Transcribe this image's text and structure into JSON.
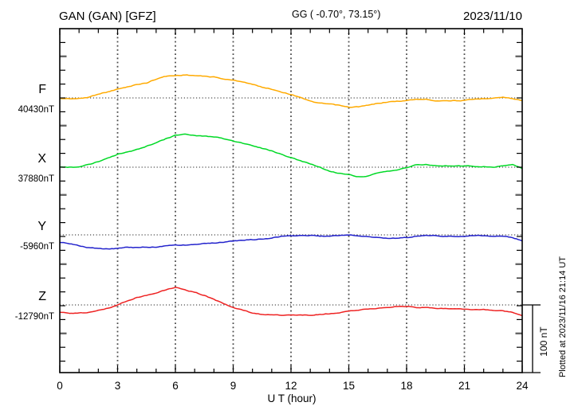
{
  "header": {
    "station_title": "GAN (GAN)  [GFZ]",
    "coords": "GG ( -0.70°,  73.15°)",
    "date": "2023/11/10"
  },
  "axes": {
    "x_label": "U T (hour)",
    "x_range": [
      0,
      24
    ],
    "x_major_ticks": [
      0,
      3,
      6,
      9,
      12,
      15,
      18,
      21,
      24
    ],
    "x_minor_tick_hours": 1,
    "y_minor_tick_nT": 20,
    "y_major_tick_nT": 100,
    "grid": "dotted vertical lines every 3 hours; dotted horizontal baseline per component"
  },
  "scale_bar": {
    "label": "100 nT",
    "value_nT": 100
  },
  "footer_note": "Plotted at 2023/11/16 21:14 UT",
  "chart_data": {
    "type": "line",
    "title": "GAN (GAN) [GFZ] magnetogram 2023/11/10",
    "x_unit": "hour UT",
    "hours": [
      0,
      0.5,
      1,
      1.5,
      2,
      2.5,
      3,
      3.5,
      4,
      4.5,
      5,
      5.5,
      6,
      6.5,
      7,
      7.5,
      8,
      8.5,
      9,
      9.5,
      10,
      10.5,
      11,
      11.5,
      12,
      12.5,
      13,
      13.5,
      14,
      14.5,
      15,
      15.5,
      16,
      16.5,
      17,
      17.5,
      18,
      18.5,
      19,
      19.5,
      20,
      20.5,
      21,
      21.5,
      22,
      22.5,
      23,
      23.5,
      24
    ],
    "series": [
      {
        "name": "F",
        "label": "F",
        "base_label": "40430nT",
        "base_nT": 40430,
        "color": "#ffaa00",
        "offsets_nT": [
          -1,
          -1,
          -1,
          1,
          6,
          9,
          13,
          16,
          20,
          22,
          28,
          32,
          33,
          34,
          33,
          32,
          31,
          28,
          26,
          24,
          20,
          16,
          13,
          9,
          5,
          1,
          -5,
          -8,
          -9,
          -11,
          -14,
          -13,
          -11,
          -8,
          -6,
          -5,
          -4,
          -2,
          -2,
          -4,
          -4,
          -4,
          -4,
          -2,
          -1,
          0,
          1,
          -1,
          -4
        ]
      },
      {
        "name": "X",
        "label": "X",
        "base_label": "37880nT",
        "base_nT": 37880,
        "color": "#00d926",
        "offsets_nT": [
          0,
          0,
          0,
          4,
          8,
          13,
          19,
          22,
          26,
          31,
          36,
          42,
          47,
          49,
          47,
          46,
          45,
          42,
          39,
          35,
          32,
          28,
          24,
          19,
          14,
          9,
          5,
          0,
          -6,
          -9,
          -11,
          -14,
          -13,
          -9,
          -6,
          -4,
          -1,
          4,
          4,
          2,
          2,
          2,
          2,
          1,
          1,
          0,
          2,
          4,
          -2
        ]
      },
      {
        "name": "Y",
        "label": "Y",
        "base_label": "-5960nT",
        "base_nT": -5960,
        "color": "#2222cc",
        "offsets_nT": [
          -11,
          -13,
          -16,
          -19,
          -20,
          -21,
          -20,
          -18,
          -19,
          -18,
          -18,
          -16,
          -15,
          -15,
          -14,
          -13,
          -12,
          -11,
          -9,
          -8,
          -7,
          -6,
          -5,
          -2,
          -1,
          -1,
          -1,
          -2,
          -2,
          -1,
          0,
          -1,
          -2,
          -4,
          -5,
          -5,
          -4,
          -2,
          -1,
          -1,
          -2,
          -2,
          -2,
          -1,
          -1,
          -2,
          -2,
          -4,
          -9
        ]
      },
      {
        "name": "Z",
        "label": "Z",
        "base_label": "-12790nT",
        "base_nT": -12790,
        "color": "#ee2222",
        "offsets_nT": [
          -11,
          -12,
          -12,
          -11,
          -8,
          -5,
          0,
          6,
          11,
          14,
          18,
          22,
          26,
          22,
          19,
          14,
          8,
          2,
          -4,
          -8,
          -12,
          -14,
          -15,
          -15,
          -15,
          -15,
          -15,
          -14,
          -13,
          -12,
          -9,
          -8,
          -6,
          -5,
          -4,
          -2,
          -2,
          -4,
          -4,
          -5,
          -5,
          -6,
          -6,
          -7,
          -7,
          -8,
          -9,
          -11,
          -16
        ]
      }
    ],
    "legend_position": "left-of-axis component labels",
    "ylim_note": "vertical scale bar = 100 nT"
  }
}
